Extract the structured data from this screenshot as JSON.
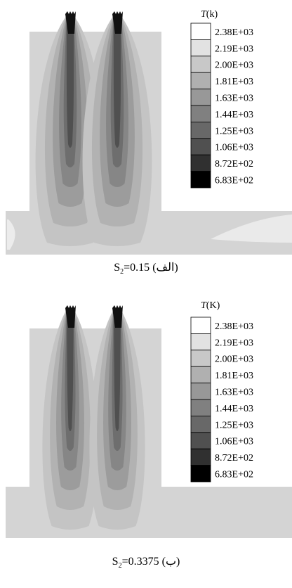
{
  "panels": [
    {
      "legend_title": [
        "T",
        "(k)"
      ],
      "legend_labels": [
        "2.38E+03",
        "2.19E+03",
        "2.00E+03",
        "1.81E+03",
        "1.63E+03",
        "1.44E+03",
        "1.25E+03",
        "1.06E+03",
        "8.72E+02",
        "6.83E+02"
      ],
      "legend_colors": [
        "#ffffff",
        "#e2e2e2",
        "#c8c8c8",
        "#b0b0b0",
        "#989898",
        "#808080",
        "#686868",
        "#505050",
        "#303030",
        "#000000"
      ],
      "caption": [
        "S",
        "2",
        "=0.15",
        "(الف)"
      ]
    },
    {
      "legend_title": [
        "T",
        "(K)"
      ],
      "legend_labels": [
        "2.38E+03",
        "2.19E+03",
        "2.00E+03",
        "1.81E+03",
        "1.63E+03",
        "1.44E+03",
        "1.25E+03",
        "1.06E+03",
        "8.72E+02",
        "6.83E+02"
      ],
      "legend_colors": [
        "#ffffff",
        "#e2e2e2",
        "#c8c8c8",
        "#b0b0b0",
        "#989898",
        "#808080",
        "#686868",
        "#505050",
        "#303030",
        "#000000"
      ],
      "caption": [
        "S",
        "2",
        "=0.3375",
        "(ب)"
      ]
    }
  ]
}
